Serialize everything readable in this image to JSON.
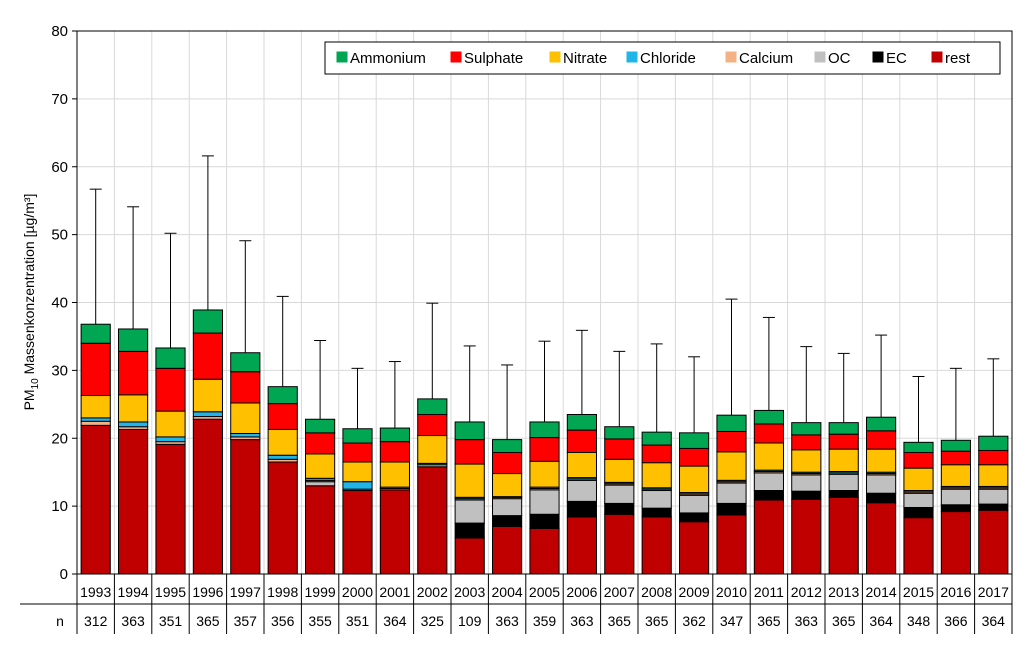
{
  "chart_data": {
    "type": "bar",
    "stacked": true,
    "title": "",
    "ylabel": "PM10 Massenkonzentration [µg/m³]",
    "ylabel_main": "PM",
    "ylabel_sub": "10",
    "ylabel_rest": " Massenkonzentration [µg/m³]",
    "xlabel": "",
    "ylim": [
      0,
      80
    ],
    "yticks": [
      0,
      10,
      20,
      30,
      40,
      50,
      60,
      70,
      80
    ],
    "grid": true,
    "legend_position": "top-right",
    "n_label": "n",
    "categories": [
      "1993",
      "1994",
      "1995",
      "1996",
      "1997",
      "1998",
      "1999",
      "2000",
      "2001",
      "2002",
      "2003",
      "2004",
      "2005",
      "2006",
      "2007",
      "2008",
      "2009",
      "2010",
      "2011",
      "2012",
      "2013",
      "2014",
      "2015",
      "2016",
      "2017"
    ],
    "n_values": [
      "312",
      "363",
      "351",
      "365",
      "357",
      "356",
      "355",
      "351",
      "364",
      "325",
      "109",
      "363",
      "359",
      "363",
      "365",
      "365",
      "362",
      "347",
      "365",
      "363",
      "365",
      "364",
      "348",
      "366",
      "364"
    ],
    "error_top": [
      56.7,
      54.1,
      50.2,
      61.6,
      49.1,
      40.9,
      34.4,
      30.3,
      31.3,
      39.9,
      33.6,
      30.8,
      34.3,
      35.9,
      32.8,
      33.9,
      32.0,
      40.5,
      37.8,
      33.5,
      32.5,
      35.2,
      29.1,
      30.3,
      31.7
    ],
    "series": [
      {
        "name": "rest",
        "color": "#c00000",
        "values": [
          21.9,
          21.3,
          19.1,
          22.8,
          19.8,
          16.5,
          13.0,
          12.3,
          12.4,
          15.8,
          5.3,
          7.0,
          6.7,
          8.4,
          8.8,
          8.4,
          7.7,
          8.7,
          10.9,
          11.0,
          11.3,
          10.5,
          8.3,
          9.2,
          9.4
        ]
      },
      {
        "name": "EC",
        "color": "#000000",
        "values": [
          0,
          0,
          0,
          0,
          0,
          0,
          0,
          0,
          0,
          0,
          2.2,
          1.6,
          2.1,
          2.3,
          1.6,
          1.3,
          1.3,
          1.7,
          1.4,
          1.2,
          1.0,
          1.4,
          1.5,
          1.0,
          0.9
        ]
      },
      {
        "name": "OC",
        "color": "#c0c0c0",
        "values": [
          0,
          0,
          0,
          0,
          0,
          0,
          0.6,
          0,
          0,
          0,
          3.4,
          2.5,
          3.6,
          3.1,
          2.7,
          2.6,
          2.6,
          3.0,
          2.6,
          2.4,
          2.4,
          2.7,
          2.1,
          2.3,
          2.2
        ]
      },
      {
        "name": "Calcium",
        "color": "#f4b183",
        "values": [
          0.6,
          0.4,
          0.4,
          0.4,
          0.4,
          0.4,
          0.2,
          0.2,
          0.2,
          0.3,
          0.2,
          0.2,
          0.2,
          0.2,
          0.2,
          0.2,
          0.2,
          0.2,
          0.2,
          0.2,
          0.2,
          0.2,
          0.2,
          0.2,
          0.2
        ]
      },
      {
        "name": "Chloride",
        "color": "#1fb5e8",
        "values": [
          0.5,
          0.7,
          0.7,
          0.7,
          0.5,
          0.6,
          0.3,
          1.1,
          0.2,
          0.2,
          0.2,
          0.1,
          0.2,
          0.2,
          0.2,
          0.2,
          0.2,
          0.2,
          0.2,
          0.2,
          0.2,
          0.2,
          0.2,
          0.2,
          0.2
        ]
      },
      {
        "name": "Nitrate",
        "color": "#ffc000",
        "values": [
          3.3,
          4.0,
          3.8,
          4.8,
          4.5,
          3.8,
          3.6,
          2.9,
          3.7,
          4.1,
          4.9,
          3.4,
          3.8,
          3.7,
          3.4,
          3.7,
          3.9,
          4.2,
          4.0,
          3.3,
          3.3,
          3.4,
          3.3,
          3.2,
          3.2
        ]
      },
      {
        "name": "Sulphate",
        "color": "#ff0000",
        "values": [
          7.7,
          6.4,
          6.3,
          6.8,
          4.6,
          3.8,
          3.1,
          2.8,
          3.0,
          3.1,
          3.6,
          3.1,
          3.5,
          3.3,
          3.0,
          2.6,
          2.6,
          3.0,
          2.8,
          2.2,
          2.2,
          2.7,
          2.3,
          2.0,
          2.1
        ]
      },
      {
        "name": "Ammonium",
        "color": "#00a651",
        "values": [
          2.8,
          3.3,
          3.0,
          3.4,
          2.8,
          2.5,
          2.0,
          2.1,
          2.0,
          2.3,
          2.6,
          1.9,
          2.3,
          2.3,
          1.8,
          1.9,
          2.3,
          2.4,
          2.0,
          1.8,
          1.7,
          2.0,
          1.5,
          1.6,
          2.1
        ]
      }
    ],
    "legend_order": [
      "Ammonium",
      "Sulphate",
      "Nitrate",
      "Chloride",
      "Calcium",
      "OC",
      "EC",
      "rest"
    ]
  }
}
